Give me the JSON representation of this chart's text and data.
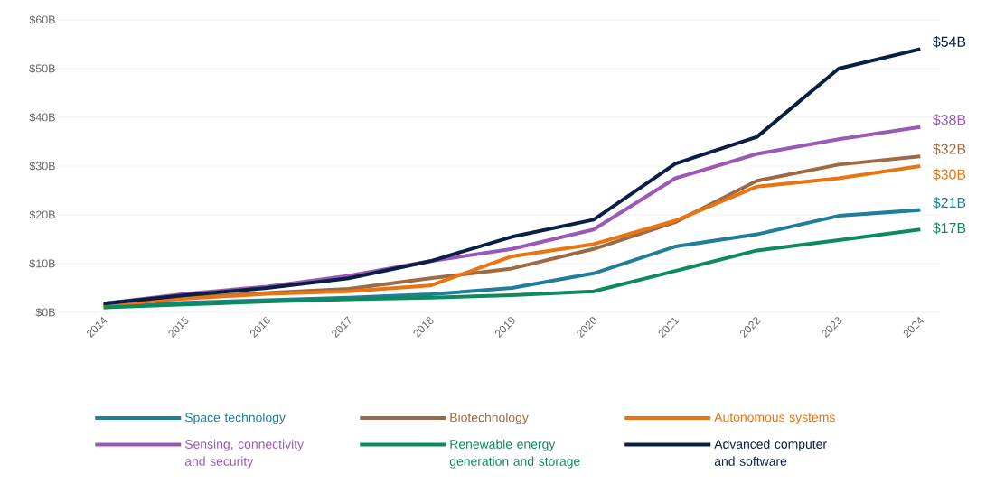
{
  "chart_data": {
    "type": "line",
    "categories": [
      "2014",
      "2015",
      "2016",
      "2017",
      "2018",
      "2019",
      "2020",
      "2021",
      "2022",
      "2023",
      "2024"
    ],
    "ylim": [
      0,
      60
    ],
    "yticks": [
      {
        "value": 0,
        "label": "$0B"
      },
      {
        "value": 10,
        "label": "$10B"
      },
      {
        "value": 20,
        "label": "$20B"
      },
      {
        "value": 30,
        "label": "$30B"
      },
      {
        "value": 40,
        "label": "$40B"
      },
      {
        "value": 50,
        "label": "$50B"
      },
      {
        "value": 60,
        "label": "$60B"
      }
    ],
    "grid": "y",
    "legend": "bottom",
    "series": [
      {
        "name": "Space technology",
        "color": "#1f7f9a",
        "values": [
          1,
          2,
          2.5,
          3,
          3.7,
          5,
          8,
          13.5,
          16,
          19.8,
          21
        ],
        "value_labels": [
          null,
          null,
          null,
          null,
          null,
          null,
          null,
          null,
          null,
          null,
          "$21B"
        ]
      },
      {
        "name": "Biotechnology",
        "color": "#9c6b45",
        "values": [
          1.5,
          3,
          4,
          4.8,
          7,
          9,
          13,
          18.5,
          27,
          30.3,
          32
        ],
        "value_labels": [
          null,
          null,
          null,
          null,
          null,
          null,
          null,
          null,
          null,
          null,
          "$32B"
        ]
      },
      {
        "name": "Autonomous systems",
        "color": "#e87511",
        "values": [
          1.5,
          2.8,
          3.8,
          4.3,
          5.5,
          11.5,
          14,
          18.8,
          25.8,
          27.5,
          30
        ],
        "value_labels": [
          null,
          null,
          null,
          null,
          null,
          null,
          null,
          null,
          null,
          null,
          "$30B"
        ]
      },
      {
        "name": "Sensing, connectivity and security",
        "color": "#9b59b6",
        "values": [
          1.8,
          3.8,
          5.3,
          7.5,
          10.5,
          13,
          17,
          27.5,
          32.5,
          35.5,
          38
        ],
        "value_labels": [
          null,
          null,
          null,
          null,
          null,
          null,
          null,
          null,
          null,
          null,
          "$38B"
        ]
      },
      {
        "name": "Renewable energy generation and storage",
        "color": "#0f8a5f",
        "values": [
          1,
          1.6,
          2.2,
          2.7,
          3,
          3.5,
          4.3,
          8.5,
          12.7,
          14.8,
          17
        ],
        "value_labels": [
          null,
          null,
          null,
          null,
          null,
          null,
          null,
          null,
          null,
          null,
          "$17B"
        ]
      },
      {
        "name": "Advanced computer and software",
        "color": "#0a1f44",
        "values": [
          1.8,
          3.5,
          5,
          7,
          10.5,
          15.5,
          19,
          30.5,
          36,
          50,
          54
        ],
        "value_labels": [
          null,
          null,
          null,
          null,
          null,
          null,
          null,
          null,
          null,
          null,
          "$54B"
        ]
      }
    ]
  }
}
